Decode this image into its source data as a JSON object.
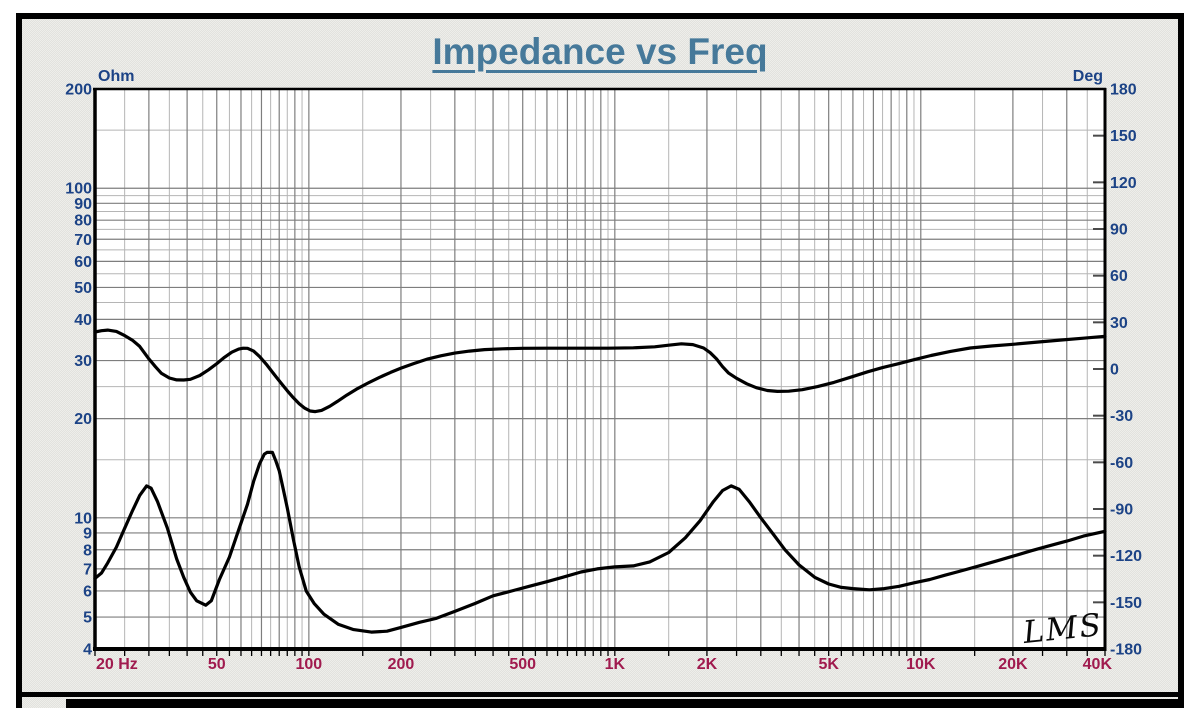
{
  "header": {
    "title": "Impedance vs Freq"
  },
  "theme": {
    "title_color": "#46799a",
    "y_label_color": "#1c4386",
    "x_label_color": "#a01a4e",
    "curve_color": "#000000",
    "grid_minor_color": "#b5b5b5",
    "grid_major_color": "#7e7e7e",
    "plot_background": "#ffffff",
    "panel_background": "#e8e8e4"
  },
  "chart_data": {
    "type": "line",
    "title": "Impedance vs Freq",
    "watermark": "LMS",
    "grid": true,
    "legend": "none",
    "x_axis": {
      "unit": "Hz",
      "scale": "log",
      "min": 20,
      "max": 40000,
      "tick_values": [
        20,
        50,
        100,
        200,
        500,
        1000,
        2000,
        5000,
        10000,
        20000,
        40000
      ],
      "tick_labels": [
        "20 Hz",
        "50",
        "100",
        "200",
        "500",
        "1K",
        "2K",
        "5K",
        "10K",
        "20K",
        "40K"
      ]
    },
    "y_left": {
      "label": "Ohm",
      "scale": "log",
      "min": 4,
      "max": 200,
      "ticks": [
        200,
        100,
        90,
        80,
        70,
        60,
        50,
        40,
        30,
        20,
        10,
        9,
        8,
        7,
        6,
        5,
        4
      ]
    },
    "y_right": {
      "label": "Deg",
      "scale": "linear",
      "min": -180,
      "max": 180,
      "ticks": [
        180,
        150,
        120,
        90,
        60,
        30,
        0,
        -30,
        -60,
        -90,
        -120,
        -150,
        -180
      ]
    },
    "series": [
      {
        "name": "impedance-magnitude",
        "axis": "left",
        "unit": "Ohm",
        "points": [
          [
            20,
            6.55
          ],
          [
            21,
            6.8
          ],
          [
            22,
            7.3
          ],
          [
            23.5,
            8.15
          ],
          [
            25,
            9.3
          ],
          [
            26.5,
            10.5
          ],
          [
            28,
            11.7
          ],
          [
            29.5,
            12.5
          ],
          [
            30.5,
            12.3
          ],
          [
            32,
            11.2
          ],
          [
            34.5,
            9.3
          ],
          [
            37,
            7.5
          ],
          [
            39,
            6.6
          ],
          [
            41,
            5.95
          ],
          [
            43,
            5.6
          ],
          [
            46,
            5.43
          ],
          [
            48,
            5.6
          ],
          [
            51,
            6.5
          ],
          [
            55,
            7.6
          ],
          [
            59,
            9.2
          ],
          [
            63,
            11.0
          ],
          [
            66,
            12.9
          ],
          [
            69,
            14.6
          ],
          [
            71.5,
            15.6
          ],
          [
            73,
            15.8
          ],
          [
            76,
            15.8
          ],
          [
            78,
            14.9
          ],
          [
            80,
            13.9
          ],
          [
            82.5,
            12.2
          ],
          [
            85,
            10.7
          ],
          [
            89,
            8.6
          ],
          [
            93,
            7.1
          ],
          [
            98,
            6.0
          ],
          [
            104,
            5.5
          ],
          [
            112,
            5.1
          ],
          [
            125,
            4.75
          ],
          [
            140,
            4.58
          ],
          [
            160,
            4.5
          ],
          [
            180,
            4.53
          ],
          [
            200,
            4.65
          ],
          [
            230,
            4.82
          ],
          [
            260,
            4.95
          ],
          [
            300,
            5.2
          ],
          [
            350,
            5.5
          ],
          [
            400,
            5.8
          ],
          [
            460,
            6.0
          ],
          [
            525,
            6.2
          ],
          [
            600,
            6.4
          ],
          [
            675,
            6.6
          ],
          [
            775,
            6.85
          ],
          [
            875,
            7.0
          ],
          [
            1000,
            7.1
          ],
          [
            1150,
            7.15
          ],
          [
            1300,
            7.35
          ],
          [
            1500,
            7.85
          ],
          [
            1700,
            8.7
          ],
          [
            1900,
            9.8
          ],
          [
            2100,
            11.2
          ],
          [
            2250,
            12.1
          ],
          [
            2400,
            12.5
          ],
          [
            2550,
            12.2
          ],
          [
            2750,
            11.2
          ],
          [
            3000,
            10.0
          ],
          [
            3300,
            8.9
          ],
          [
            3600,
            8.0
          ],
          [
            4000,
            7.2
          ],
          [
            4500,
            6.6
          ],
          [
            5000,
            6.3
          ],
          [
            5500,
            6.15
          ],
          [
            6000,
            6.1
          ],
          [
            6800,
            6.05
          ],
          [
            7600,
            6.1
          ],
          [
            8500,
            6.2
          ],
          [
            9500,
            6.35
          ],
          [
            10700,
            6.5
          ],
          [
            12000,
            6.7
          ],
          [
            13500,
            6.9
          ],
          [
            15500,
            7.15
          ],
          [
            17700,
            7.4
          ],
          [
            20000,
            7.65
          ],
          [
            23000,
            7.95
          ],
          [
            26000,
            8.2
          ],
          [
            30000,
            8.5
          ],
          [
            34000,
            8.8
          ],
          [
            40000,
            9.1
          ]
        ]
      },
      {
        "name": "impedance-phase",
        "axis": "right",
        "unit": "Deg",
        "points": [
          [
            20,
            23.8
          ],
          [
            21,
            24.6
          ],
          [
            22,
            25.0
          ],
          [
            23.5,
            24.2
          ],
          [
            25,
            21.5
          ],
          [
            26.5,
            18.5
          ],
          [
            28,
            14.5
          ],
          [
            30,
            6.5
          ],
          [
            31.5,
            1.5
          ],
          [
            33,
            -2.8
          ],
          [
            35,
            -5.8
          ],
          [
            37,
            -7.0
          ],
          [
            39,
            -7.1
          ],
          [
            41,
            -6.6
          ],
          [
            44,
            -4.2
          ],
          [
            47,
            -0.5
          ],
          [
            50,
            3.5
          ],
          [
            53,
            7.5
          ],
          [
            56,
            10.8
          ],
          [
            59,
            12.8
          ],
          [
            61,
            13.4
          ],
          [
            63,
            13.3
          ],
          [
            66,
            11.5
          ],
          [
            69,
            8.0
          ],
          [
            73,
            2.5
          ],
          [
            76,
            -2.0
          ],
          [
            79,
            -6.2
          ],
          [
            82,
            -10.2
          ],
          [
            85,
            -14.0
          ],
          [
            89,
            -18.5
          ],
          [
            93,
            -22.3
          ],
          [
            97,
            -25.2
          ],
          [
            101,
            -27.0
          ],
          [
            105,
            -27.4
          ],
          [
            110,
            -26.6
          ],
          [
            117,
            -24.0
          ],
          [
            124,
            -20.8
          ],
          [
            133,
            -16.8
          ],
          [
            143,
            -13.0
          ],
          [
            155,
            -9.3
          ],
          [
            170,
            -5.4
          ],
          [
            185,
            -2.2
          ],
          [
            200,
            0.6
          ],
          [
            220,
            3.5
          ],
          [
            245,
            6.5
          ],
          [
            270,
            8.5
          ],
          [
            300,
            10.2
          ],
          [
            335,
            11.5
          ],
          [
            375,
            12.5
          ],
          [
            430,
            13.0
          ],
          [
            500,
            13.3
          ],
          [
            600,
            13.4
          ],
          [
            750,
            13.4
          ],
          [
            950,
            13.4
          ],
          [
            1150,
            13.6
          ],
          [
            1350,
            14.3
          ],
          [
            1500,
            15.3
          ],
          [
            1650,
            16.2
          ],
          [
            1800,
            15.7
          ],
          [
            1950,
            13.5
          ],
          [
            2050,
            10.5
          ],
          [
            2150,
            6.5
          ],
          [
            2250,
            1.5
          ],
          [
            2350,
            -2.5
          ],
          [
            2500,
            -6.0
          ],
          [
            2700,
            -9.5
          ],
          [
            2900,
            -12.0
          ],
          [
            3150,
            -13.8
          ],
          [
            3400,
            -14.4
          ],
          [
            3700,
            -14.3
          ],
          [
            4100,
            -13.3
          ],
          [
            4600,
            -11.3
          ],
          [
            5200,
            -8.6
          ],
          [
            5900,
            -5.3
          ],
          [
            6700,
            -1.8
          ],
          [
            7500,
            0.9
          ],
          [
            8400,
            3.3
          ],
          [
            9500,
            6.0
          ],
          [
            10800,
            8.7
          ],
          [
            12500,
            11.3
          ],
          [
            14500,
            13.5
          ],
          [
            17000,
            14.8
          ],
          [
            20000,
            15.9
          ],
          [
            24000,
            17.3
          ],
          [
            28500,
            18.6
          ],
          [
            34000,
            19.8
          ],
          [
            40000,
            21.0
          ]
        ]
      }
    ]
  }
}
